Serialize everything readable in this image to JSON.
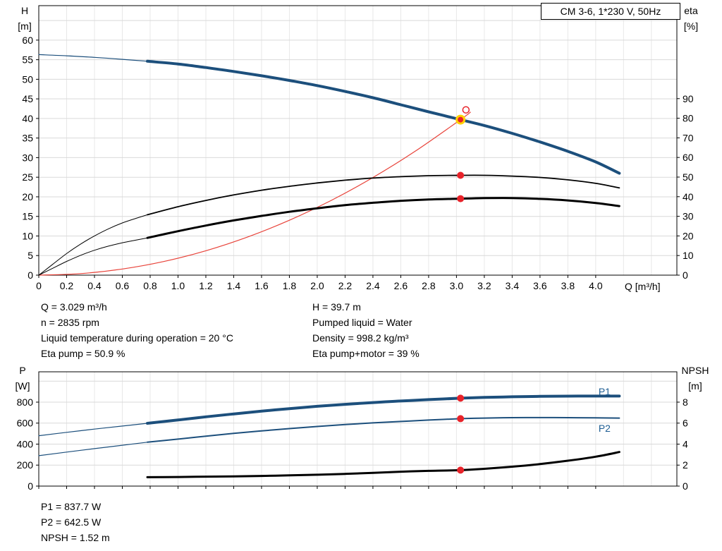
{
  "header": {
    "title": "CM 3-6, 1*230 V, 50Hz"
  },
  "info_panel": {
    "left": [
      "Q = 3.029 m³/h",
      "n = 2835 rpm",
      "Liquid temperature during operation = 20 °C",
      "Eta pump = 50.9 %"
    ],
    "right": [
      "H = 39.7 m",
      "Pumped liquid = Water",
      "Density = 998.2 kg/m³",
      "Eta pump+motor = 39 %"
    ]
  },
  "bottom_panel": {
    "lines": [
      "P1 = 837.7 W",
      "P2 = 642.5 W",
      "NPSH = 1.52 m"
    ]
  },
  "colors": {
    "curve_blue": "#1c4f7c",
    "curve_red": "#e8433a",
    "curve_black": "#000000",
    "marker_red": "#e8232a",
    "marker_ring_yellow": "#ffd200",
    "label_blue": "#1c5c92",
    "grid_h": "#d9d9d9",
    "grid_v": "#e8e8e8",
    "axis": "#000000"
  },
  "chart_data": [
    {
      "id": "top",
      "type": "line",
      "title": "CM 3-6, 1*230 V, 50Hz",
      "x": {
        "label": "Q [m³/h]",
        "min": 0,
        "max": 4.583,
        "tick_values": [
          0,
          0.2,
          0.4,
          0.6,
          0.8,
          1.0,
          1.2,
          1.4,
          1.6,
          1.8,
          2.0,
          2.2,
          2.4,
          2.6,
          2.8,
          3.0,
          3.2,
          3.4,
          3.6,
          3.8,
          4.0
        ],
        "tick_labels": [
          "0",
          "0.2",
          "0.4",
          "0.6",
          "0.8",
          "1.0",
          "1.2",
          "1.4",
          "1.6",
          "1.8",
          "2.0",
          "2.2",
          "2.4",
          "2.6",
          "2.8",
          "3.0",
          "3.2",
          "3.4",
          "3.6",
          "3.8",
          "4.0"
        ],
        "grid_extra": [
          4.2,
          4.4
        ]
      },
      "y_left": {
        "label_lines": [
          "H",
          "[m]"
        ],
        "min": 0,
        "max": 68.8,
        "tick_values": [
          0,
          5,
          10,
          15,
          20,
          25,
          30,
          35,
          40,
          45,
          50,
          55,
          60
        ],
        "tick_labels": [
          "0",
          "5",
          "10",
          "15",
          "20",
          "25",
          "30",
          "35",
          "40",
          "45",
          "50",
          "55",
          "60"
        ],
        "grid_extra": [
          65
        ]
      },
      "y_right": {
        "label_lines": [
          "eta",
          "[%]"
        ],
        "min": 0,
        "max": 137.4,
        "tick_values": [
          0,
          10,
          20,
          30,
          40,
          50,
          60,
          70,
          80,
          90
        ],
        "tick_labels": [
          "0",
          "10",
          "20",
          "30",
          "40",
          "50",
          "60",
          "70",
          "80",
          "90"
        ],
        "grid_extra": []
      },
      "series": [
        {
          "name": "hq-lead",
          "axis": "y_left",
          "color": "#1c4f7c",
          "width": 1.2,
          "points": [
            [
              0,
              56.3
            ],
            [
              0.2,
              56.0
            ],
            [
              0.4,
              55.6
            ],
            [
              0.6,
              55.1
            ],
            [
              0.78,
              54.6
            ]
          ]
        },
        {
          "name": "hq",
          "axis": "y_left",
          "color": "#1c4f7c",
          "width": 4,
          "points": [
            [
              0.78,
              54.6
            ],
            [
              1.0,
              53.9
            ],
            [
              1.2,
              53.0
            ],
            [
              1.4,
              52.0
            ],
            [
              1.6,
              50.9
            ],
            [
              1.8,
              49.7
            ],
            [
              2.0,
              48.4
            ],
            [
              2.2,
              46.9
            ],
            [
              2.4,
              45.3
            ],
            [
              2.6,
              43.5
            ],
            [
              2.8,
              41.7
            ],
            [
              3.029,
              39.7
            ],
            [
              3.2,
              38.2
            ],
            [
              3.4,
              36.2
            ],
            [
              3.6,
              34.0
            ],
            [
              3.8,
              31.6
            ],
            [
              4.0,
              28.9
            ],
            [
              4.17,
              26.0
            ]
          ]
        },
        {
          "name": "system-curve",
          "axis": "y_left",
          "color": "#e8433a",
          "width": 1.2,
          "points": [
            [
              0,
              0
            ],
            [
              0.3,
              0.39
            ],
            [
              0.6,
              1.56
            ],
            [
              0.9,
              3.5
            ],
            [
              1.2,
              6.23
            ],
            [
              1.5,
              9.74
            ],
            [
              1.8,
              14.02
            ],
            [
              2.1,
              19.08
            ],
            [
              2.4,
              24.92
            ],
            [
              2.7,
              31.55
            ],
            [
              3.029,
              39.7
            ],
            [
              3.1,
              41.6
            ]
          ]
        },
        {
          "name": "eta-pump-lead",
          "axis": "y_right",
          "color": "#000000",
          "width": 1,
          "points": [
            [
              0,
              0
            ],
            [
              0.1,
              5.5
            ],
            [
              0.2,
              11.0
            ],
            [
              0.3,
              15.8
            ],
            [
              0.4,
              20.0
            ],
            [
              0.5,
              23.6
            ],
            [
              0.6,
              26.6
            ],
            [
              0.7,
              29.0
            ],
            [
              0.78,
              30.8
            ]
          ]
        },
        {
          "name": "eta-pump",
          "axis": "y_right",
          "color": "#000000",
          "width": 1.8,
          "points": [
            [
              0.78,
              30.8
            ],
            [
              1.0,
              34.9
            ],
            [
              1.2,
              38.1
            ],
            [
              1.4,
              40.9
            ],
            [
              1.6,
              43.3
            ],
            [
              1.8,
              45.3
            ],
            [
              2.0,
              47.0
            ],
            [
              2.2,
              48.4
            ],
            [
              2.4,
              49.5
            ],
            [
              2.6,
              50.2
            ],
            [
              2.8,
              50.7
            ],
            [
              3.029,
              50.9
            ],
            [
              3.2,
              50.9
            ],
            [
              3.4,
              50.5
            ],
            [
              3.6,
              49.8
            ],
            [
              3.8,
              48.6
            ],
            [
              4.0,
              46.8
            ],
            [
              4.17,
              44.5
            ]
          ]
        },
        {
          "name": "eta-pump-motor-lead",
          "axis": "y_right",
          "color": "#000000",
          "width": 1,
          "points": [
            [
              0,
              0
            ],
            [
              0.1,
              3.5
            ],
            [
              0.2,
              7.0
            ],
            [
              0.3,
              10.1
            ],
            [
              0.4,
              12.7
            ],
            [
              0.5,
              14.8
            ],
            [
              0.6,
              16.5
            ],
            [
              0.7,
              17.9
            ],
            [
              0.78,
              19.0
            ]
          ]
        },
        {
          "name": "eta-pump-motor",
          "axis": "y_right",
          "color": "#000000",
          "width": 3,
          "points": [
            [
              0.78,
              19.0
            ],
            [
              1.0,
              22.4
            ],
            [
              1.2,
              25.3
            ],
            [
              1.4,
              27.9
            ],
            [
              1.6,
              30.2
            ],
            [
              1.8,
              32.3
            ],
            [
              2.0,
              34.1
            ],
            [
              2.2,
              35.7
            ],
            [
              2.4,
              36.9
            ],
            [
              2.6,
              37.9
            ],
            [
              2.8,
              38.6
            ],
            [
              3.029,
              39.0
            ],
            [
              3.2,
              39.3
            ],
            [
              3.4,
              39.3
            ],
            [
              3.6,
              38.9
            ],
            [
              3.8,
              38.1
            ],
            [
              4.0,
              36.8
            ],
            [
              4.17,
              35.2
            ]
          ]
        }
      ],
      "markers": [
        {
          "name": "duty-point",
          "axis": "y_left",
          "q": 3.029,
          "v": 39.7,
          "r": 5.5,
          "fill": "#e8232a",
          "stroke": "#ffd200",
          "stroke_width": 3
        },
        {
          "name": "requested-duty-point",
          "axis": "y_left",
          "q": 3.068,
          "v": 42.2,
          "r": 4.5,
          "fill": "#ffffff",
          "stroke": "#e8232a",
          "stroke_width": 1.5
        },
        {
          "name": "eta-pump-point",
          "axis": "y_right",
          "q": 3.029,
          "v": 50.9,
          "r": 5,
          "fill": "#e8232a"
        },
        {
          "name": "eta-pump-motor-point",
          "axis": "y_right",
          "q": 3.029,
          "v": 39.0,
          "r": 5,
          "fill": "#e8232a"
        }
      ],
      "annotations": []
    },
    {
      "id": "bottom",
      "type": "line",
      "title": "",
      "x": {
        "label": "",
        "min": 0,
        "max": 4.583,
        "tick_values": [
          0,
          0.2,
          0.4,
          0.6,
          0.8,
          1.0,
          1.2,
          1.4,
          1.6,
          1.8,
          2.0,
          2.2,
          2.4,
          2.6,
          2.8,
          3.0,
          3.2,
          3.4,
          3.6,
          3.8,
          4.0
        ],
        "tick_labels": [
          "",
          "",
          "",
          "",
          "",
          "",
          "",
          "",
          "",
          "",
          "",
          "",
          "",
          "",
          "",
          "",
          "",
          "",
          "",
          "",
          ""
        ],
        "grid_extra": [
          4.2,
          4.4
        ]
      },
      "y_left": {
        "label_lines": [
          "P",
          "[W]"
        ],
        "min": 0,
        "max": 1089,
        "tick_values": [
          0,
          200,
          400,
          600,
          800
        ],
        "tick_labels": [
          "0",
          "200",
          "400",
          "600",
          "800"
        ],
        "grid_extra": [
          1000
        ]
      },
      "y_right": {
        "label_lines": [
          "NPSH",
          "[m]"
        ],
        "min": 0,
        "max": 10.89,
        "tick_values": [
          0,
          2,
          4,
          6,
          8
        ],
        "tick_labels": [
          "0",
          "2",
          "4",
          "6",
          "8"
        ],
        "grid_extra": []
      },
      "series": [
        {
          "name": "p1-lead",
          "axis": "y_left",
          "color": "#1c4f7c",
          "width": 1.2,
          "points": [
            [
              0,
              480
            ],
            [
              0.2,
              512
            ],
            [
              0.4,
              543
            ],
            [
              0.6,
              572
            ],
            [
              0.78,
              598
            ]
          ]
        },
        {
          "name": "p1",
          "axis": "y_left",
          "color": "#1c4f7c",
          "width": 4,
          "points": [
            [
              0.78,
              598
            ],
            [
              1.0,
              630
            ],
            [
              1.2,
              660
            ],
            [
              1.4,
              688
            ],
            [
              1.6,
              714
            ],
            [
              1.8,
              738
            ],
            [
              2.0,
              760
            ],
            [
              2.2,
              779
            ],
            [
              2.4,
              796
            ],
            [
              2.6,
              811
            ],
            [
              2.8,
              824
            ],
            [
              3.029,
              837.7
            ],
            [
              3.2,
              845
            ],
            [
              3.4,
              851
            ],
            [
              3.6,
              855
            ],
            [
              3.8,
              857
            ],
            [
              4.0,
              858
            ],
            [
              4.17,
              858
            ]
          ]
        },
        {
          "name": "p2-lead",
          "axis": "y_left",
          "color": "#1c4f7c",
          "width": 1.2,
          "points": [
            [
              0,
              290
            ],
            [
              0.2,
              324
            ],
            [
              0.4,
              357
            ],
            [
              0.6,
              389
            ],
            [
              0.78,
              418
            ]
          ]
        },
        {
          "name": "p2",
          "axis": "y_left",
          "color": "#1c4f7c",
          "width": 2,
          "points": [
            [
              0.78,
              418
            ],
            [
              1.0,
              448
            ],
            [
              1.2,
              476
            ],
            [
              1.4,
              502
            ],
            [
              1.6,
              526
            ],
            [
              1.8,
              548
            ],
            [
              2.0,
              568
            ],
            [
              2.2,
              586
            ],
            [
              2.4,
              602
            ],
            [
              2.6,
              616
            ],
            [
              2.8,
              629
            ],
            [
              3.029,
              642.5
            ],
            [
              3.2,
              648
            ],
            [
              3.4,
              652
            ],
            [
              3.6,
              653
            ],
            [
              3.8,
              652
            ],
            [
              4.0,
              650
            ],
            [
              4.17,
              648
            ]
          ]
        },
        {
          "name": "npsh",
          "axis": "y_right",
          "color": "#000000",
          "width": 3,
          "points": [
            [
              0.78,
              0.85
            ],
            [
              1.0,
              0.87
            ],
            [
              1.2,
              0.9
            ],
            [
              1.4,
              0.93
            ],
            [
              1.6,
              0.97
            ],
            [
              1.8,
              1.02
            ],
            [
              2.0,
              1.08
            ],
            [
              2.2,
              1.16
            ],
            [
              2.4,
              1.26
            ],
            [
              2.6,
              1.37
            ],
            [
              2.8,
              1.45
            ],
            [
              3.029,
              1.52
            ],
            [
              3.2,
              1.65
            ],
            [
              3.4,
              1.85
            ],
            [
              3.6,
              2.1
            ],
            [
              3.8,
              2.42
            ],
            [
              4.0,
              2.8
            ],
            [
              4.17,
              3.25
            ]
          ]
        }
      ],
      "markers": [
        {
          "name": "p1-point",
          "axis": "y_left",
          "q": 3.029,
          "v": 837.7,
          "r": 5,
          "fill": "#e8232a"
        },
        {
          "name": "p2-point",
          "axis": "y_left",
          "q": 3.029,
          "v": 642.5,
          "r": 5,
          "fill": "#e8232a"
        },
        {
          "name": "npsh-point",
          "axis": "y_right",
          "q": 3.029,
          "v": 1.52,
          "r": 5,
          "fill": "#e8232a"
        }
      ],
      "annotations": [
        {
          "text": "P1",
          "axis": "y_left",
          "q": 4.02,
          "v": 867,
          "color": "#1c5c92"
        },
        {
          "text": "P2",
          "axis": "y_left",
          "q": 4.02,
          "v": 518,
          "color": "#1c5c92"
        }
      ]
    }
  ]
}
